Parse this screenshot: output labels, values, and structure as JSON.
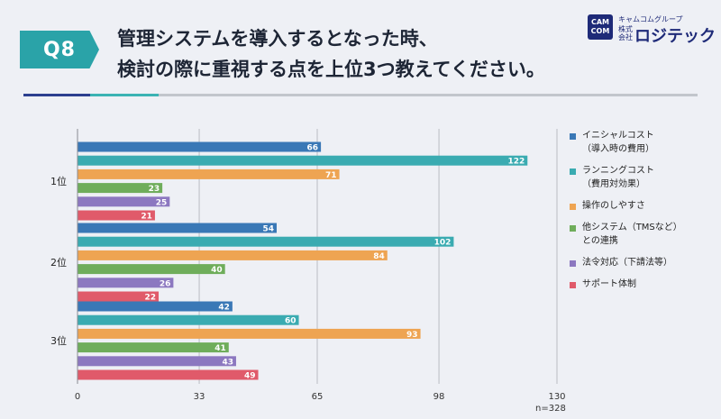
{
  "header": {
    "badge": "Q8",
    "title_line1": "管理システムを導入するとなった時、",
    "title_line2": "検討の際に重視する点を上位3つ教えてください。"
  },
  "logo": {
    "mark_top": "CAM",
    "mark_bottom": "COM",
    "group_name": "キャムコムグループ",
    "corp_label": "株式会社",
    "company_name": "ロジテック"
  },
  "note": "n=328",
  "colors": {
    "badge": "#2aa3a8",
    "rule_dark": "#2c3f8f",
    "rule_teal": "#3bb3b3",
    "rule_gray": "#c2c6cc"
  },
  "chart_data": {
    "type": "bar",
    "orientation": "horizontal",
    "categories": [
      "1位",
      "2位",
      "3位"
    ],
    "series": [
      {
        "name": "イニシャルコスト\n（導入時の費用）",
        "color": "#3a78b6",
        "values": [
          66,
          54,
          42
        ]
      },
      {
        "name": "ランニングコスト\n（費用対効果）",
        "color": "#3aabb1",
        "values": [
          122,
          102,
          60
        ]
      },
      {
        "name": "操作のしやすさ",
        "color": "#eea452",
        "values": [
          71,
          84,
          93
        ]
      },
      {
        "name": "他システム（TMSなど）\nとの連携",
        "color": "#6fad5b",
        "values": [
          23,
          40,
          41
        ]
      },
      {
        "name": "法令対応（下請法等）",
        "color": "#8c78c0",
        "values": [
          25,
          26,
          43
        ]
      },
      {
        "name": "サポート体制",
        "color": "#e05a6a",
        "values": [
          21,
          22,
          49
        ]
      }
    ],
    "x_ticks": [
      "0",
      "33",
      "65",
      "98",
      "130"
    ],
    "xlim": [
      0,
      130
    ],
    "grid": true,
    "legend_position": "right"
  }
}
